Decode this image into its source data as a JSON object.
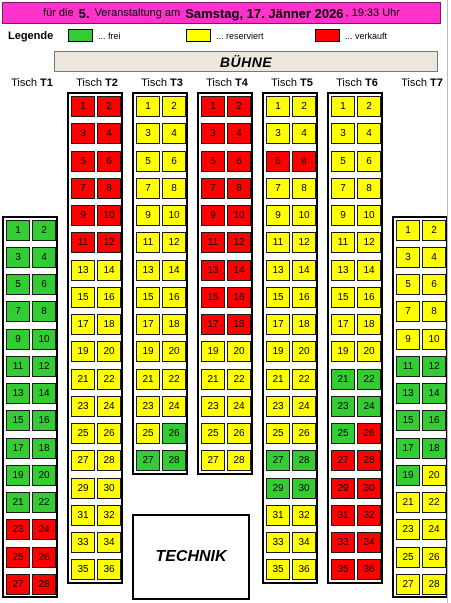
{
  "header": {
    "prefix": "für die",
    "number": "5.",
    "event": "Veranstaltung am",
    "date": "Samstag, 17. Jänner 2026",
    "time": ", 19:33 Uhr"
  },
  "legend": {
    "title": "Legende",
    "items": [
      {
        "label": "... frei",
        "color": "#33cc33"
      },
      {
        "label": "... reserviert",
        "color": "#ffff00"
      },
      {
        "label": "... verkauft",
        "color": "#ff0000"
      }
    ]
  },
  "stage": {
    "label": "BÜHNE"
  },
  "technik": {
    "label": "TECHNIK"
  },
  "seat_colors": {
    "F": "#33cc33",
    "R": "#ffff00",
    "S": "#ff0000"
  },
  "tables": [
    {
      "prefix": "Tisch",
      "id": "T1",
      "seats": 28,
      "status": [
        "F",
        "F",
        "F",
        "F",
        "F",
        "F",
        "F",
        "F",
        "F",
        "F",
        "F",
        "F",
        "F",
        "F",
        "F",
        "F",
        "F",
        "F",
        "F",
        "F",
        "F",
        "F",
        "S",
        "S",
        "S",
        "S",
        "S",
        "S"
      ]
    },
    {
      "prefix": "Tisch",
      "id": "T2",
      "seats": 36,
      "status": [
        "S",
        "S",
        "S",
        "S",
        "S",
        "S",
        "S",
        "S",
        "S",
        "S",
        "S",
        "S",
        "R",
        "R",
        "R",
        "R",
        "R",
        "R",
        "R",
        "R",
        "R",
        "R",
        "R",
        "R",
        "R",
        "R",
        "R",
        "R",
        "R",
        "R",
        "R",
        "R",
        "R",
        "R",
        "R",
        "R"
      ]
    },
    {
      "prefix": "Tisch",
      "id": "T3",
      "seats": 28,
      "status": [
        "R",
        "R",
        "R",
        "R",
        "R",
        "R",
        "R",
        "R",
        "R",
        "R",
        "R",
        "R",
        "R",
        "R",
        "R",
        "R",
        "R",
        "R",
        "R",
        "R",
        "R",
        "R",
        "R",
        "R",
        "R",
        "F",
        "F",
        "F"
      ]
    },
    {
      "prefix": "Tisch",
      "id": "T4",
      "seats": 28,
      "status": [
        "S",
        "S",
        "S",
        "S",
        "S",
        "S",
        "S",
        "S",
        "S",
        "S",
        "S",
        "S",
        "S",
        "S",
        "S",
        "S",
        "S",
        "S",
        "R",
        "R",
        "R",
        "R",
        "R",
        "R",
        "R",
        "R",
        "R",
        "R"
      ]
    },
    {
      "prefix": "Tisch",
      "id": "T5",
      "seats": 36,
      "status": [
        "R",
        "R",
        "R",
        "R",
        "S",
        "S",
        "R",
        "R",
        "R",
        "R",
        "R",
        "R",
        "R",
        "R",
        "R",
        "R",
        "R",
        "R",
        "R",
        "R",
        "R",
        "R",
        "R",
        "R",
        "R",
        "R",
        "F",
        "F",
        "F",
        "F",
        "R",
        "R",
        "R",
        "R",
        "R",
        "R"
      ]
    },
    {
      "prefix": "Tisch",
      "id": "T6",
      "seats": 36,
      "status": [
        "R",
        "R",
        "R",
        "R",
        "R",
        "R",
        "R",
        "R",
        "R",
        "R",
        "R",
        "R",
        "R",
        "R",
        "R",
        "R",
        "R",
        "R",
        "R",
        "R",
        "F",
        "F",
        "F",
        "F",
        "F",
        "S",
        "S",
        "S",
        "S",
        "S",
        "S",
        "S",
        "S",
        "S",
        "S",
        "S"
      ]
    },
    {
      "prefix": "Tisch",
      "id": "T7",
      "seats": 28,
      "status": [
        "R",
        "R",
        "R",
        "R",
        "R",
        "R",
        "R",
        "R",
        "R",
        "R",
        "F",
        "F",
        "F",
        "F",
        "F",
        "F",
        "F",
        "F",
        "F",
        "R",
        "R",
        "R",
        "R",
        "R",
        "R",
        "R",
        "R",
        "R"
      ]
    }
  ]
}
